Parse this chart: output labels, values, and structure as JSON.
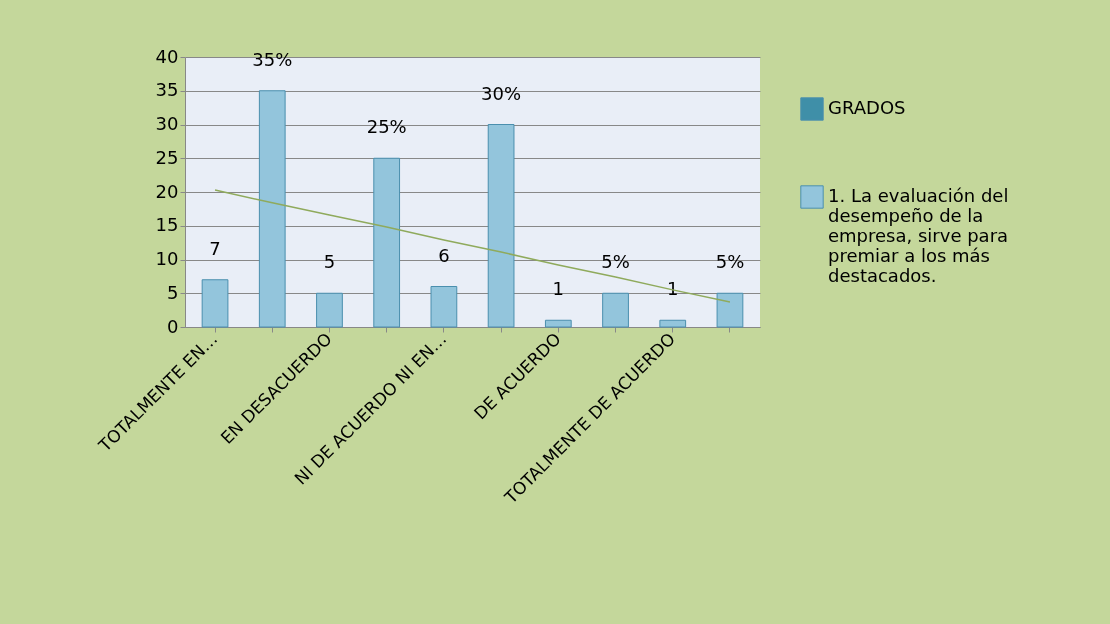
{
  "chart_data": {
    "type": "bar",
    "categories": [
      "TOTALMENTE EN…",
      null,
      "EN DESACUERDO",
      null,
      "NI DE ACUERDO NI EN…",
      null,
      "DE ACUERDO",
      null,
      "TOTALMENTE DE ACUERDO",
      null
    ],
    "series": [
      {
        "name": "GRADOS",
        "color": "#3f8fa8",
        "values": [
          null,
          null,
          null,
          null,
          null,
          null,
          null,
          null,
          null,
          null
        ]
      },
      {
        "name": "1. La evaluación del desempeño de la empresa, sirve para premiar a los más destacados.",
        "color": "#93c5dc",
        "values": [
          7,
          35,
          5,
          25,
          6,
          30,
          1,
          5,
          1,
          5
        ],
        "value_labels": [
          "7",
          "35%",
          "5",
          "25%",
          "6",
          "30%",
          "1",
          "5%",
          "1",
          "5%"
        ]
      },
      {
        "type": "line",
        "color": "#8faa5c",
        "values": [
          20.3,
          18.4,
          16.6,
          14.8,
          12.9,
          11.1,
          9.2,
          7.4,
          5.5,
          3.7
        ]
      }
    ],
    "ylim": [
      0,
      40
    ],
    "yticks": [
      0,
      5,
      10,
      15,
      20,
      25,
      30,
      35,
      40
    ],
    "grid": "y",
    "legend": "right"
  }
}
